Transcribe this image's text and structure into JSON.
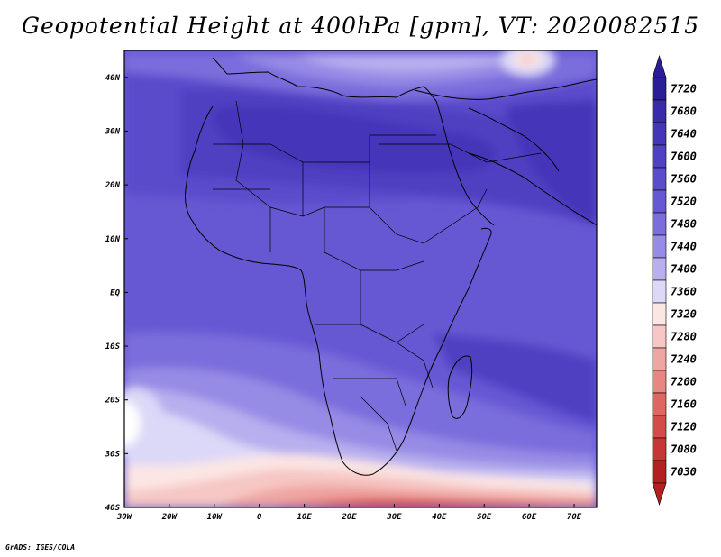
{
  "title": "Geopotential Height at 400hPa [gpm], VT: 2020082515",
  "credit": "GrADS: IGES/COLA",
  "map": {
    "lon_range": [
      -30,
      75
    ],
    "lat_range": [
      -40,
      45
    ],
    "lat_labels": [
      "40S",
      "30S",
      "20S",
      "10S",
      "EQ",
      "10N",
      "20N",
      "30N",
      "40N"
    ],
    "lat_values": [
      -40,
      -30,
      -20,
      -10,
      0,
      10,
      20,
      30,
      40
    ],
    "lon_labels": [
      "30W",
      "20W",
      "10W",
      "0",
      "10E",
      "20E",
      "30E",
      "40E",
      "50E",
      "60E",
      "70E"
    ],
    "lon_values": [
      -30,
      -20,
      -10,
      0,
      10,
      20,
      30,
      40,
      50,
      60,
      70
    ]
  },
  "colorbar": {
    "labels": [
      "7720",
      "7680",
      "7640",
      "7600",
      "7560",
      "7520",
      "7480",
      "7440",
      "7400",
      "7360",
      "7320",
      "7280",
      "7240",
      "7200",
      "7160",
      "7120",
      "7080",
      "7030"
    ],
    "colors": [
      "#2a1d96",
      "#3a2ca8",
      "#4536b8",
      "#4f41c2",
      "#5a4ccb",
      "#6658d3",
      "#7a6ddc",
      "#968be5",
      "#b7afee",
      "#dcd8f8",
      "#fbe6e4",
      "#f6c7c4",
      "#efa6a2",
      "#e88682",
      "#e06662",
      "#d44c49",
      "#c73634",
      "#b32020"
    ]
  }
}
